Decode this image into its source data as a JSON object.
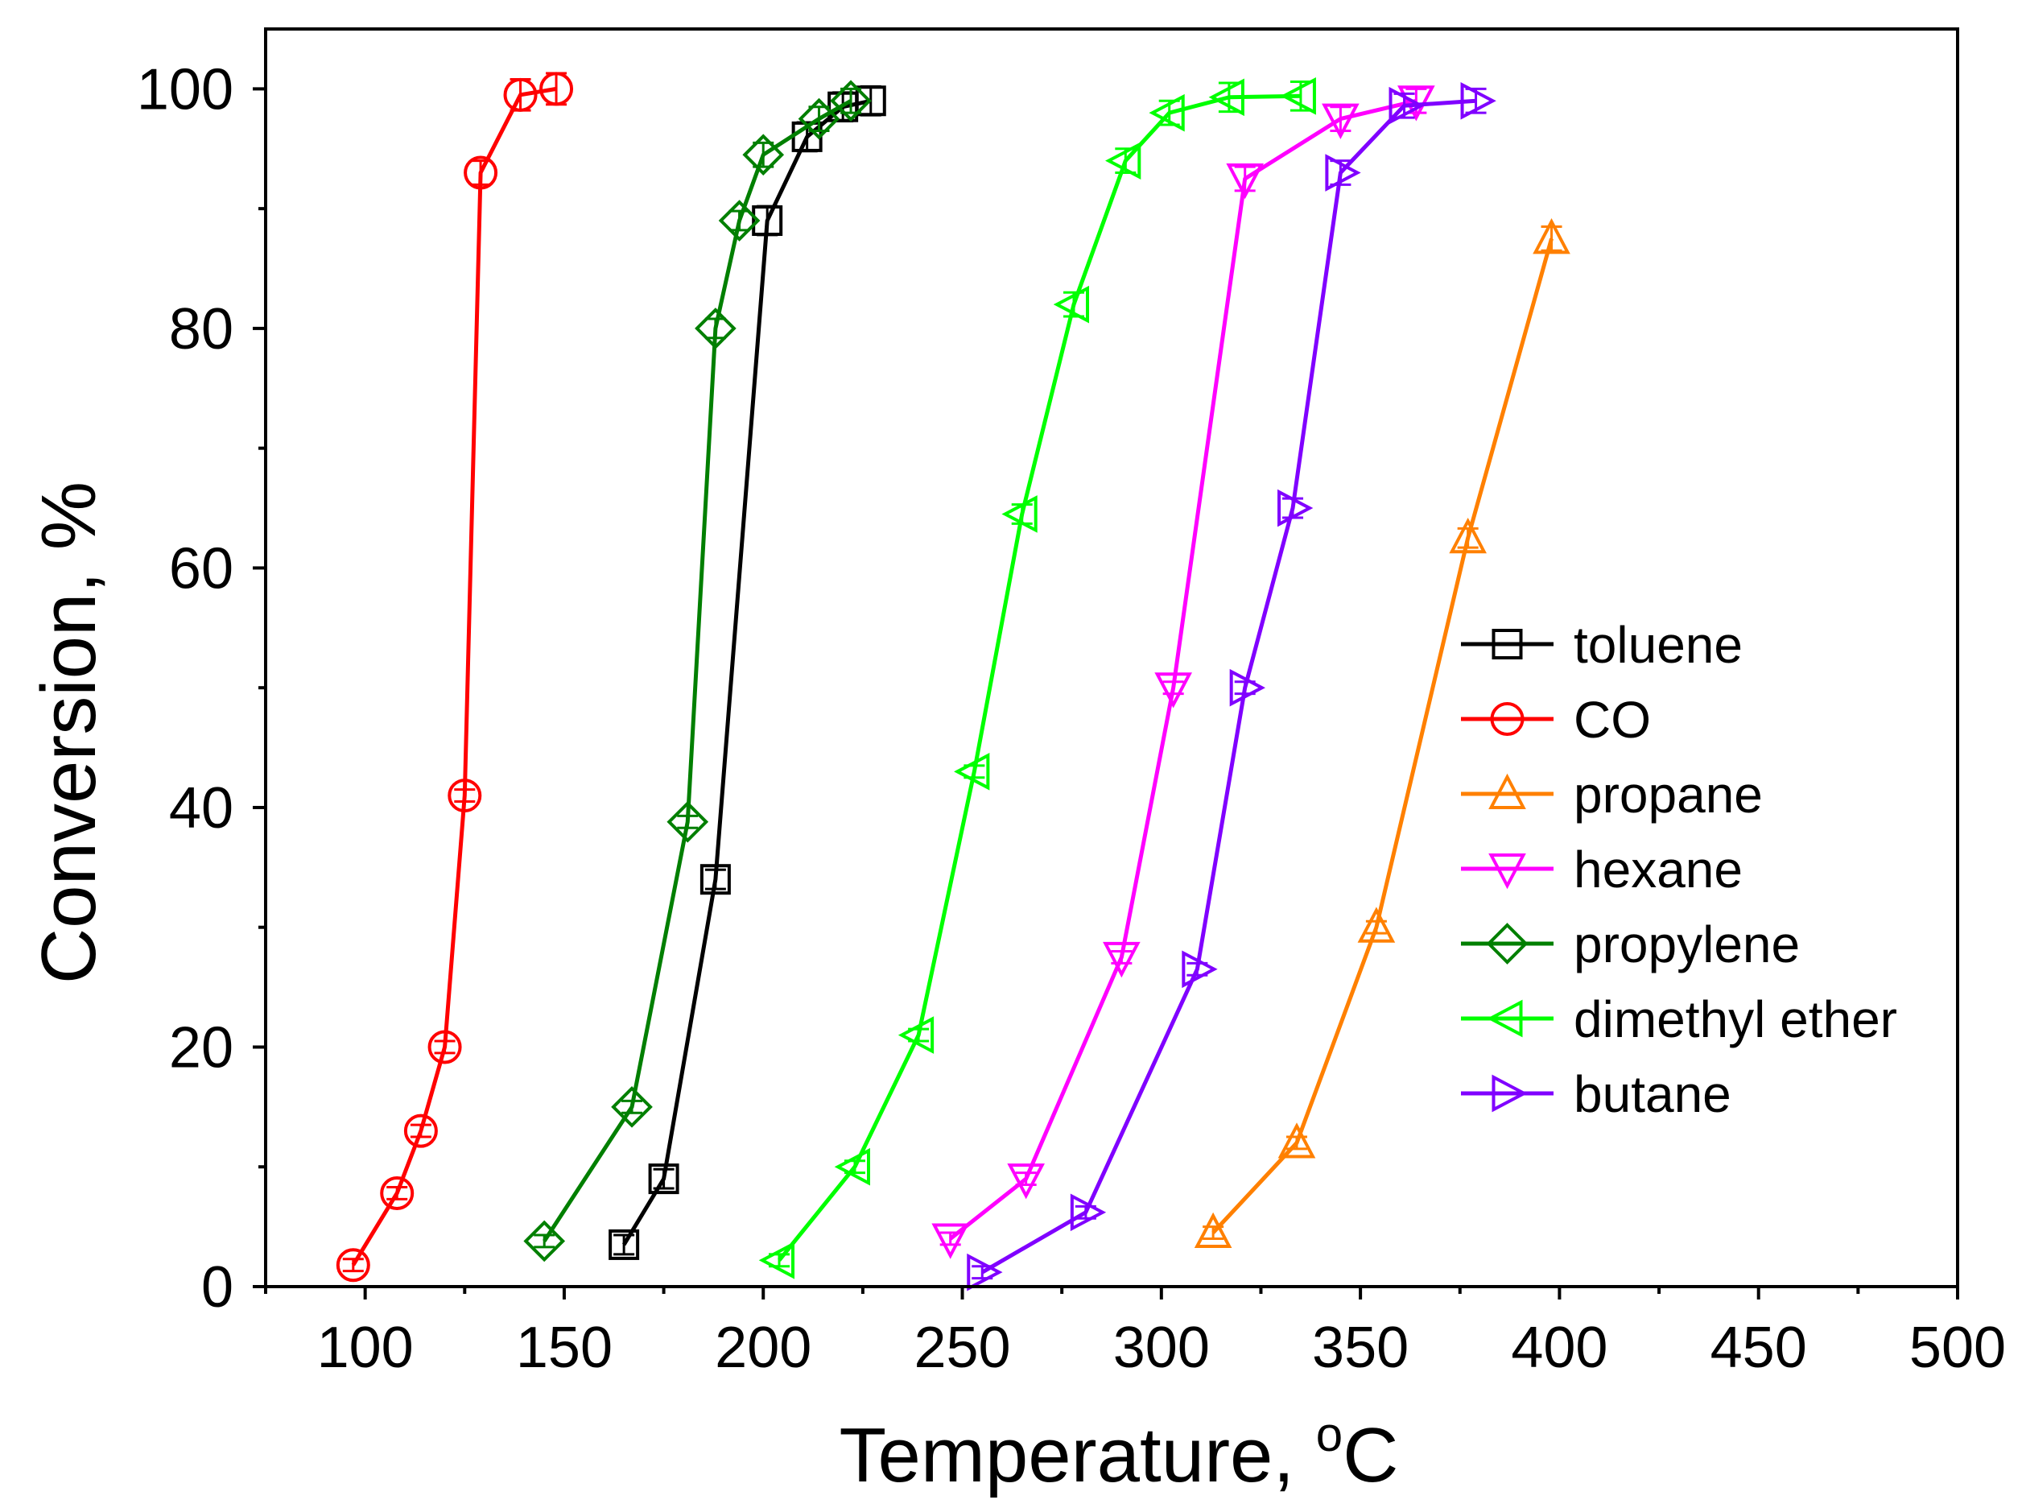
{
  "chart_data": {
    "type": "line",
    "xlabel": "Temperature, ",
    "xlabel_superscript": "o",
    "xlabel_unit": "C",
    "ylabel": "Conversion, %",
    "xlim": [
      75,
      500
    ],
    "ylim": [
      0,
      105
    ],
    "x_ticks": [
      100,
      150,
      200,
      250,
      300,
      350,
      400,
      450,
      500
    ],
    "y_ticks": [
      0,
      20,
      40,
      60,
      80,
      100
    ],
    "legend_position": "center-right",
    "series": [
      {
        "name": "toluene",
        "color": "#000000",
        "marker": "square",
        "x": [
          165,
          175,
          188,
          201,
          211,
          220,
          227
        ],
        "y": [
          3.5,
          9,
          34,
          89,
          96,
          98.5,
          99
        ],
        "err": [
          0.8,
          0.8,
          0.8,
          1.2,
          1.2,
          1.2,
          1.2
        ]
      },
      {
        "name": "CO",
        "color": "#ff0000",
        "marker": "circle",
        "x": [
          97,
          108,
          114,
          120,
          125,
          129,
          139,
          148
        ],
        "y": [
          1.8,
          7.8,
          13,
          20,
          41,
          93,
          99.5,
          100
        ],
        "err": [
          0.5,
          0.5,
          0.5,
          0.5,
          0.5,
          1,
          1.3,
          1.3
        ]
      },
      {
        "name": "propane",
        "color": "#ff8000",
        "marker": "triangle-up",
        "x": [
          313,
          334,
          354,
          377,
          398
        ],
        "y": [
          4.5,
          12,
          30,
          62.5,
          87.5
        ],
        "err": [
          0.5,
          0.5,
          0.5,
          0.8,
          1
        ]
      },
      {
        "name": "hexane",
        "color": "#ff00ff",
        "marker": "triangle-down",
        "x": [
          247,
          266,
          290,
          303,
          321,
          345,
          364
        ],
        "y": [
          4,
          9,
          27.5,
          50,
          92.5,
          97.5,
          99
        ],
        "err": [
          0.5,
          0.5,
          0.5,
          0.5,
          1,
          1,
          1
        ]
      },
      {
        "name": "propylene",
        "color": "#007f00",
        "marker": "diamond",
        "x": [
          145,
          167,
          181,
          188,
          194,
          200,
          214,
          222
        ],
        "y": [
          3.8,
          15,
          38.8,
          80,
          89,
          94.5,
          97.5,
          99
        ],
        "err": [
          0.5,
          0.5,
          0.5,
          0.8,
          0.8,
          1,
          1,
          1
        ]
      },
      {
        "name": "dimethyl ether",
        "color": "#00ff00",
        "marker": "triangle-left",
        "x": [
          204,
          223,
          239,
          253,
          265,
          278,
          291,
          302,
          317,
          335
        ],
        "y": [
          2.2,
          10,
          21,
          43,
          64.5,
          82,
          94,
          98,
          99.3,
          99.4
        ],
        "err": [
          0.5,
          0.5,
          0.5,
          0.5,
          0.8,
          1,
          1,
          1,
          1.2,
          1.2
        ]
      },
      {
        "name": "butane",
        "color": "#8000ff",
        "marker": "triangle-right",
        "x": [
          255,
          281,
          309,
          321,
          333,
          345,
          361,
          379
        ],
        "y": [
          1.2,
          6.2,
          26.5,
          50,
          65,
          93,
          98.6,
          99
        ],
        "err": [
          0.5,
          0.5,
          0.5,
          0.5,
          0.8,
          1,
          1,
          1
        ]
      }
    ]
  }
}
